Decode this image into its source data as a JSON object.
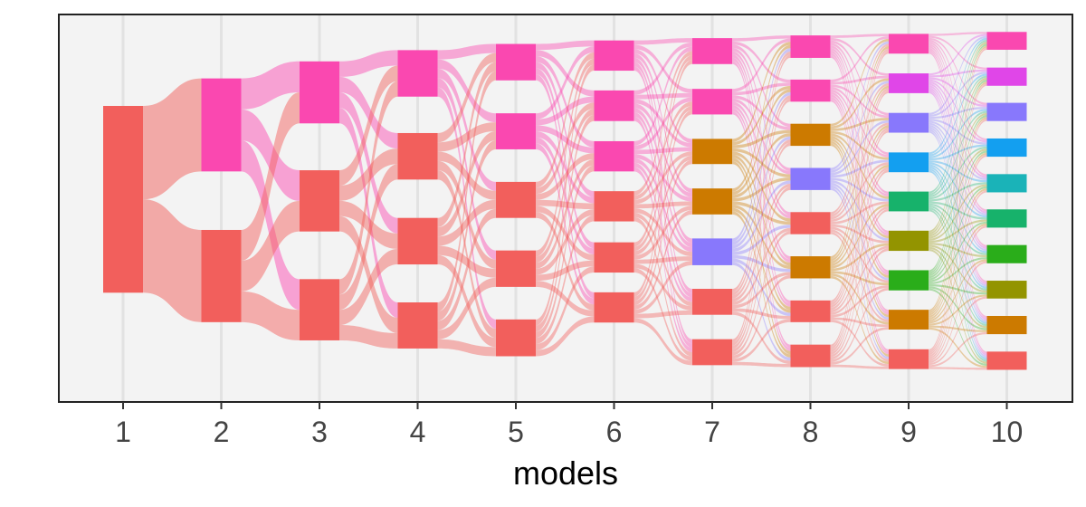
{
  "chart_data": {
    "type": "alluvial",
    "xlabel": "models",
    "x_ticks": [
      "1",
      "2",
      "3",
      "4",
      "5",
      "6",
      "7",
      "8",
      "9",
      "10"
    ],
    "grid": true,
    "background": "#f3f3f3",
    "columns": [
      {
        "model": "1",
        "nodes": [
          {
            "color": "#f25f5c",
            "y": [
              0.236,
              0.718
            ]
          }
        ]
      },
      {
        "model": "2",
        "nodes": [
          {
            "color": "#fa48b0",
            "y": [
              0.165,
              0.405
            ]
          },
          {
            "color": "#f25f5c",
            "y": [
              0.556,
              0.794
            ]
          }
        ]
      },
      {
        "model": "3",
        "nodes": [
          {
            "color": "#fa48b0",
            "y": [
              0.121,
              0.281
            ]
          },
          {
            "color": "#f25f5c",
            "y": [
              0.402,
              0.56
            ]
          },
          {
            "color": "#f25f5c",
            "y": [
              0.683,
              0.841
            ]
          }
        ]
      },
      {
        "model": "4",
        "nodes": [
          {
            "color": "#fa48b0",
            "y": [
              0.092,
              0.212
            ]
          },
          {
            "color": "#f25f5c",
            "y": [
              0.306,
              0.426
            ]
          },
          {
            "color": "#f25f5c",
            "y": [
              0.525,
              0.645
            ]
          },
          {
            "color": "#f25f5c",
            "y": [
              0.743,
              0.862
            ]
          }
        ]
      },
      {
        "model": "5",
        "nodes": [
          {
            "color": "#fa48b0",
            "y": [
              0.076,
              0.17
            ]
          },
          {
            "color": "#fa48b0",
            "y": [
              0.255,
              0.348
            ]
          },
          {
            "color": "#f25f5c",
            "y": [
              0.432,
              0.525
            ]
          },
          {
            "color": "#f25f5c",
            "y": [
              0.609,
              0.703
            ]
          },
          {
            "color": "#f25f5c",
            "y": [
              0.787,
              0.882
            ]
          }
        ]
      },
      {
        "model": "6",
        "nodes": [
          {
            "color": "#fa48b0",
            "y": [
              0.067,
              0.145
            ]
          },
          {
            "color": "#fa48b0",
            "y": [
              0.196,
              0.275
            ]
          },
          {
            "color": "#fa48b0",
            "y": [
              0.327,
              0.405
            ]
          },
          {
            "color": "#f25f5c",
            "y": [
              0.456,
              0.534
            ]
          },
          {
            "color": "#f25f5c",
            "y": [
              0.588,
              0.666
            ]
          },
          {
            "color": "#f25f5c",
            "y": [
              0.717,
              0.795
            ]
          }
        ]
      },
      {
        "model": "7",
        "nodes": [
          {
            "color": "#fa48b0",
            "y": [
              0.061,
              0.128
            ]
          },
          {
            "color": "#fa48b0",
            "y": [
              0.192,
              0.258
            ]
          },
          {
            "color": "#cc7a00",
            "y": [
              0.321,
              0.386
            ]
          },
          {
            "color": "#cc7a00",
            "y": [
              0.449,
              0.516
            ]
          },
          {
            "color": "#8878fc",
            "y": [
              0.578,
              0.647
            ]
          },
          {
            "color": "#f25f5c",
            "y": [
              0.708,
              0.775
            ]
          },
          {
            "color": "#f25f5c",
            "y": [
              0.838,
              0.905
            ]
          }
        ]
      },
      {
        "model": "8",
        "nodes": [
          {
            "color": "#fa48b0",
            "y": [
              0.054,
              0.112
            ]
          },
          {
            "color": "#fa48b0",
            "y": [
              0.168,
              0.225
            ]
          },
          {
            "color": "#cc7a00",
            "y": [
              0.282,
              0.339
            ]
          },
          {
            "color": "#8878fc",
            "y": [
              0.396,
              0.453
            ]
          },
          {
            "color": "#f25f5c",
            "y": [
              0.51,
              0.567
            ]
          },
          {
            "color": "#cc7a00",
            "y": [
              0.624,
              0.681
            ]
          },
          {
            "color": "#f25f5c",
            "y": [
              0.738,
              0.794
            ]
          },
          {
            "color": "#f25f5c",
            "y": [
              0.852,
              0.91
            ]
          }
        ]
      },
      {
        "model": "9",
        "nodes": [
          {
            "color": "#fa48b0",
            "y": [
              0.05,
              0.101
            ]
          },
          {
            "color": "#e046e8",
            "y": [
              0.152,
              0.203
            ]
          },
          {
            "color": "#8878fc",
            "y": [
              0.254,
              0.305
            ]
          },
          {
            "color": "#139ff0",
            "y": [
              0.356,
              0.407
            ]
          },
          {
            "color": "#17b26b",
            "y": [
              0.457,
              0.508
            ]
          },
          {
            "color": "#939400",
            "y": [
              0.558,
              0.61
            ]
          },
          {
            "color": "#2aad1a",
            "y": [
              0.66,
              0.712
            ]
          },
          {
            "color": "#cc7a00",
            "y": [
              0.762,
              0.813
            ]
          },
          {
            "color": "#f25f5c",
            "y": [
              0.864,
              0.915
            ]
          }
        ]
      },
      {
        "model": "10",
        "nodes": [
          {
            "color": "#fa48b0",
            "y": [
              0.045,
              0.091
            ]
          },
          {
            "color": "#e046e8",
            "y": [
              0.137,
              0.184
            ]
          },
          {
            "color": "#8878fc",
            "y": [
              0.228,
              0.275
            ]
          },
          {
            "color": "#139ff0",
            "y": [
              0.32,
              0.367
            ]
          },
          {
            "color": "#1ab3b8",
            "y": [
              0.412,
              0.459
            ]
          },
          {
            "color": "#17b26b",
            "y": [
              0.503,
              0.55
            ]
          },
          {
            "color": "#2aad1a",
            "y": [
              0.595,
              0.642
            ]
          },
          {
            "color": "#939400",
            "y": [
              0.687,
              0.733
            ]
          },
          {
            "color": "#cc7a00",
            "y": [
              0.778,
              0.825
            ]
          },
          {
            "color": "#f25f5c",
            "y": [
              0.87,
              0.917
            ]
          }
        ]
      }
    ]
  }
}
